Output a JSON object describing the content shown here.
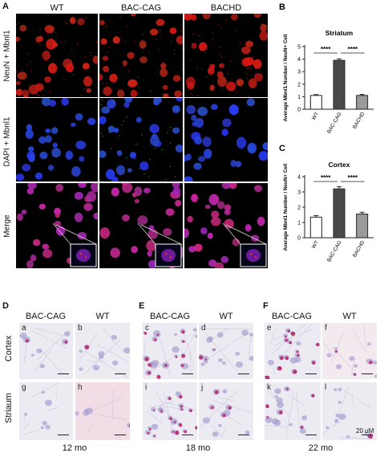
{
  "panelA": {
    "letter": "A",
    "columns": [
      "WT",
      "BAC-CAG",
      "BACHD"
    ],
    "rows": [
      "NeuN + Mbnl1",
      "DAPI + Mbnl1",
      "Merge"
    ]
  },
  "panelD": {
    "letter": "D",
    "columns": [
      "BAC-CAG",
      "WT"
    ],
    "age": "12 mo",
    "subs": [
      "a",
      "b",
      "g",
      "h"
    ]
  },
  "panelE": {
    "letter": "E",
    "columns": [
      "BAC-CAG",
      "WT"
    ],
    "age": "18 mo",
    "subs": [
      "c",
      "d",
      "i",
      "j"
    ]
  },
  "panelF": {
    "letter": "F",
    "columns": [
      "BAC-CAG",
      "WT"
    ],
    "age": "22 mo",
    "subs": [
      "e",
      "f",
      "k",
      "l"
    ]
  },
  "rowLabels": [
    "Cortex",
    "Striaum"
  ],
  "scaleLabel": "20 μM",
  "colors": {
    "bar_dark": "#4a4a4a",
    "bar_light": "#9a9a9a",
    "bar_white": "#ffffff",
    "neun": "#c8251c",
    "dapi": "#2a3fd8"
  },
  "chart_data": [
    {
      "panel": "B",
      "type": "bar",
      "title": "Striatum",
      "ylabel": "Average Mbnl1 Number / NeuN+ Cell",
      "categories": [
        "WT",
        "BAC-CAG",
        "BACHD"
      ],
      "values": [
        1.1,
        3.9,
        1.1
      ],
      "errors": [
        0.07,
        0.12,
        0.08
      ],
      "ylim": [
        0,
        5
      ],
      "yticks": [
        "0",
        "1",
        "2",
        "3",
        "4",
        "5"
      ],
      "significance": [
        {
          "from": 0,
          "to": 1,
          "label": "****"
        },
        {
          "from": 1,
          "to": 2,
          "label": "****"
        }
      ]
    },
    {
      "panel": "C",
      "type": "bar",
      "title": "Cortex",
      "ylabel": "Average Mbnl1 Number / NeuN+ Cell",
      "categories": [
        "WT",
        "BAC-CAG",
        "BACHD"
      ],
      "values": [
        1.35,
        3.2,
        1.55
      ],
      "errors": [
        0.1,
        0.15,
        0.12
      ],
      "ylim": [
        0,
        4
      ],
      "yticks": [
        "0",
        "1",
        "2",
        "3",
        "4"
      ],
      "significance": [
        {
          "from": 0,
          "to": 1,
          "label": "****"
        },
        {
          "from": 1,
          "to": 2,
          "label": "****"
        }
      ]
    }
  ]
}
